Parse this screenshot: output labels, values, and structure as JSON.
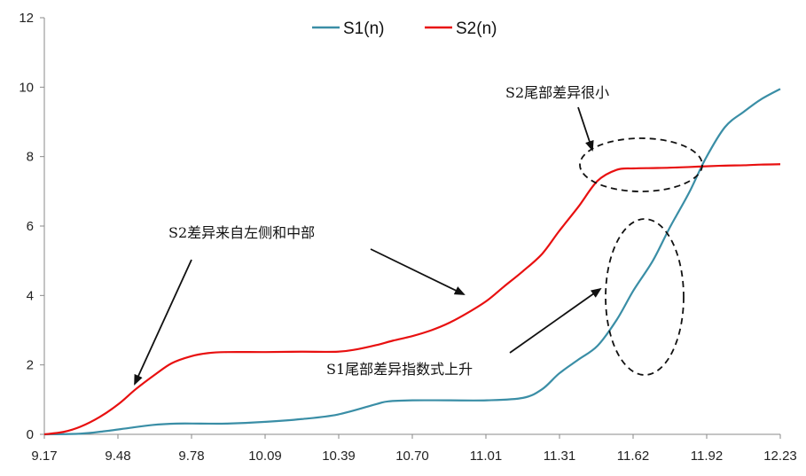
{
  "chart_data": {
    "type": "line",
    "title": "",
    "xlabel": "",
    "ylabel": "",
    "xlim": [
      9.17,
      12.23
    ],
    "ylim": [
      0,
      12
    ],
    "x_ticks": [
      "9.17",
      "9.48",
      "9.78",
      "10.09",
      "10.39",
      "10.70",
      "11.01",
      "11.31",
      "11.62",
      "11.92",
      "12.23"
    ],
    "y_ticks": [
      0,
      2,
      4,
      6,
      8,
      10,
      12
    ],
    "grid": false,
    "legend_position": "top-center",
    "series": [
      {
        "name": "S1(n)",
        "color": "#3a8ea6",
        "x": [
          9.17,
          9.32,
          9.42,
          9.52,
          9.62,
          9.72,
          9.82,
          9.93,
          10.09,
          10.24,
          10.39,
          10.55,
          10.6,
          10.7,
          10.85,
          11.01,
          11.16,
          11.24,
          11.31,
          11.39,
          11.47,
          11.55,
          11.62,
          11.7,
          11.77,
          11.85,
          11.92,
          12.0,
          12.08,
          12.15,
          12.23
        ],
        "values": [
          0.0,
          0.02,
          0.09,
          0.18,
          0.27,
          0.31,
          0.31,
          0.31,
          0.36,
          0.44,
          0.57,
          0.87,
          0.95,
          0.98,
          0.98,
          0.98,
          1.05,
          1.3,
          1.75,
          2.15,
          2.55,
          3.3,
          4.15,
          5.0,
          5.95,
          6.95,
          7.95,
          8.85,
          9.3,
          9.65,
          9.95
        ]
      },
      {
        "name": "S2(n)",
        "color": "#e81010",
        "x": [
          9.17,
          9.25,
          9.32,
          9.4,
          9.48,
          9.55,
          9.63,
          9.7,
          9.78,
          9.85,
          9.93,
          10.09,
          10.24,
          10.39,
          10.47,
          10.55,
          10.62,
          10.7,
          10.78,
          10.85,
          10.93,
          11.01,
          11.08,
          11.16,
          11.24,
          11.31,
          11.39,
          11.47,
          11.55,
          11.62,
          11.7,
          11.77,
          11.85,
          11.92,
          12.0,
          12.08,
          12.15,
          12.23
        ],
        "values": [
          0.0,
          0.07,
          0.22,
          0.5,
          0.88,
          1.3,
          1.72,
          2.05,
          2.25,
          2.34,
          2.37,
          2.37,
          2.38,
          2.38,
          2.45,
          2.57,
          2.7,
          2.83,
          3.0,
          3.2,
          3.5,
          3.85,
          4.25,
          4.7,
          5.2,
          5.85,
          6.55,
          7.3,
          7.62,
          7.66,
          7.67,
          7.68,
          7.7,
          7.72,
          7.74,
          7.75,
          7.77,
          7.78
        ]
      }
    ],
    "annotations": [
      "S2尾部差异很小",
      "S2差异来自左侧和中部",
      "S1尾部差异指数式上升"
    ]
  }
}
